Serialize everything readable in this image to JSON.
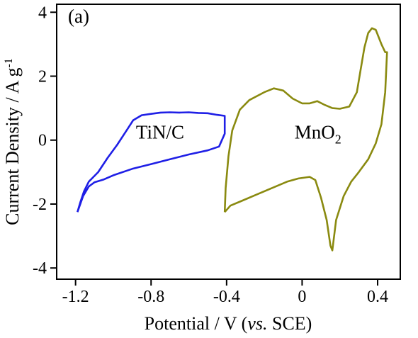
{
  "chart_data": {
    "type": "line",
    "panel_label": "(a)",
    "xlabel": {
      "prefix": "Potential / V (",
      "italic": "vs.",
      "suffix": " SCE)"
    },
    "ylabel": {
      "prefix": "Current Density / A g",
      "superscript": "-1"
    },
    "xlim": [
      -1.3,
      0.52
    ],
    "ylim": [
      -4.35,
      4.25
    ],
    "x_ticks": [
      -1.2,
      -0.8,
      -0.4,
      0,
      0.4
    ],
    "x_tick_labels": [
      "-1.2",
      "-0.8",
      "-0.4",
      "0",
      "0.4"
    ],
    "y_ticks": [
      -4,
      -2,
      0,
      2,
      4
    ],
    "y_tick_labels": [
      "-4",
      "-2",
      "0",
      "2",
      "4"
    ],
    "grid": false,
    "legend": "none",
    "series": [
      {
        "name": "TiN/C",
        "color": "#1f1fe6",
        "label_anchor": [
          -0.88,
          0.05
        ],
        "points": [
          [
            -1.19,
            -2.25
          ],
          [
            -1.175,
            -1.95
          ],
          [
            -1.155,
            -1.6
          ],
          [
            -1.13,
            -1.3
          ],
          [
            -1.08,
            -1.0
          ],
          [
            -1.03,
            -0.55
          ],
          [
            -0.98,
            -0.15
          ],
          [
            -0.93,
            0.3
          ],
          [
            -0.895,
            0.62
          ],
          [
            -0.85,
            0.78
          ],
          [
            -0.8,
            0.82
          ],
          [
            -0.75,
            0.86
          ],
          [
            -0.7,
            0.87
          ],
          [
            -0.65,
            0.86
          ],
          [
            -0.6,
            0.87
          ],
          [
            -0.55,
            0.85
          ],
          [
            -0.5,
            0.84
          ],
          [
            -0.45,
            0.79
          ],
          [
            -0.41,
            0.76
          ],
          [
            -0.41,
            0.2
          ],
          [
            -0.44,
            -0.2
          ],
          [
            -0.5,
            -0.32
          ],
          [
            -0.6,
            -0.45
          ],
          [
            -0.7,
            -0.6
          ],
          [
            -0.8,
            -0.75
          ],
          [
            -0.9,
            -0.9
          ],
          [
            -1.0,
            -1.1
          ],
          [
            -1.05,
            -1.23
          ],
          [
            -1.1,
            -1.32
          ],
          [
            -1.13,
            -1.45
          ],
          [
            -1.16,
            -1.75
          ],
          [
            -1.19,
            -2.25
          ]
        ]
      },
      {
        "name": "MnO2",
        "label_main": "MnO",
        "label_sub": "2",
        "color": "#8a8a10",
        "label_anchor": [
          -0.04,
          0.05
        ],
        "points": [
          [
            -0.41,
            -2.25
          ],
          [
            -0.405,
            -1.5
          ],
          [
            -0.39,
            -0.5
          ],
          [
            -0.37,
            0.3
          ],
          [
            -0.33,
            0.95
          ],
          [
            -0.28,
            1.25
          ],
          [
            -0.2,
            1.5
          ],
          [
            -0.15,
            1.62
          ],
          [
            -0.1,
            1.55
          ],
          [
            -0.05,
            1.3
          ],
          [
            0.0,
            1.15
          ],
          [
            0.04,
            1.15
          ],
          [
            0.08,
            1.22
          ],
          [
            0.12,
            1.1
          ],
          [
            0.16,
            1.0
          ],
          [
            0.2,
            0.98
          ],
          [
            0.25,
            1.05
          ],
          [
            0.29,
            1.5
          ],
          [
            0.31,
            2.2
          ],
          [
            0.33,
            2.9
          ],
          [
            0.35,
            3.35
          ],
          [
            0.37,
            3.5
          ],
          [
            0.39,
            3.45
          ],
          [
            0.42,
            3.0
          ],
          [
            0.44,
            2.75
          ],
          [
            0.45,
            2.75
          ],
          [
            0.44,
            1.5
          ],
          [
            0.42,
            0.5
          ],
          [
            0.39,
            -0.1
          ],
          [
            0.35,
            -0.6
          ],
          [
            0.3,
            -1.0
          ],
          [
            0.26,
            -1.3
          ],
          [
            0.22,
            -1.75
          ],
          [
            0.18,
            -2.5
          ],
          [
            0.16,
            -3.45
          ],
          [
            0.15,
            -3.3
          ],
          [
            0.13,
            -2.5
          ],
          [
            0.1,
            -1.8
          ],
          [
            0.07,
            -1.25
          ],
          [
            0.04,
            -1.15
          ],
          [
            -0.02,
            -1.2
          ],
          [
            -0.08,
            -1.3
          ],
          [
            -0.16,
            -1.5
          ],
          [
            -0.24,
            -1.7
          ],
          [
            -0.32,
            -1.9
          ],
          [
            -0.38,
            -2.05
          ],
          [
            -0.41,
            -2.25
          ]
        ]
      }
    ]
  }
}
